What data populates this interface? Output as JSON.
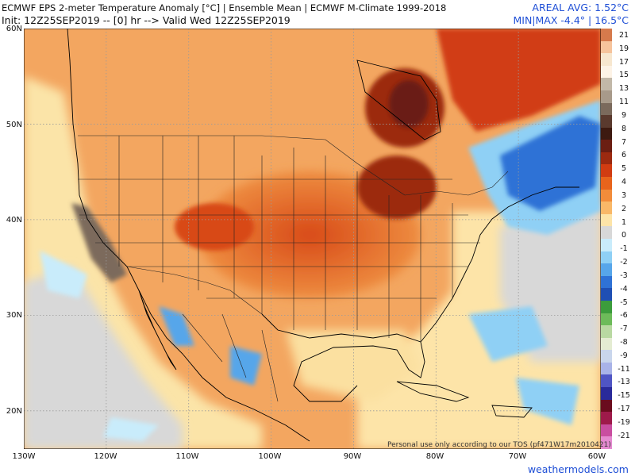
{
  "header": {
    "title": "ECMWF EPS 2-meter Temperature Anomaly [°C] | Ensemble Mean | ECMWF M-Climate 1999-2018",
    "init": "Init: 12Z25SEP2019 -- [0] hr --> Valid Wed 12Z25SEP2019",
    "areal_avg": "AREAL AVG: 1.52°C",
    "minmax": "MIN|MAX -4.4° | 16.5°C"
  },
  "map": {
    "region": "North America",
    "lat_ticks": [
      "60N",
      "50N",
      "40N",
      "30N",
      "20N"
    ],
    "lon_ticks": [
      "130W",
      "120W",
      "110W",
      "100W",
      "90W",
      "80W",
      "70W",
      "60W"
    ],
    "extent": {
      "lon": [
        -130,
        -60
      ],
      "lat": [
        16,
        60
      ]
    },
    "tos_note": "Personal use only according to our TOS (pf471W17m2010421)",
    "site": "weathermodels.com"
  },
  "legend": {
    "labels": [
      "21",
      "19",
      "17",
      "15",
      "13",
      "11",
      "9",
      "8",
      "7",
      "6",
      "5",
      "4",
      "3",
      "2",
      "1",
      "0",
      "-1",
      "-2",
      "-3",
      "-4",
      "-5",
      "-6",
      "-7",
      "-8",
      "-9",
      "-11",
      "-13",
      "-15",
      "-17",
      "-19",
      "-21"
    ],
    "colors": [
      "#d67a4c",
      "#f6c49c",
      "#f7e7cf",
      "#fdf3e6",
      "#c2b8a8",
      "#a89a8a",
      "#7b6a5c",
      "#5a3a2e",
      "#3d1a10",
      "#6b1e12",
      "#9c2a10",
      "#d13c12",
      "#e8641c",
      "#f28c3a",
      "#f9b868",
      "#fde4a8",
      "#d8d8d8",
      "#c9ecfb",
      "#8fd0f5",
      "#57a6ea",
      "#2f72d6",
      "#1f4fb4",
      "#3c9c3c",
      "#6dbb5a",
      "#b9d9a2",
      "#e4ecd2",
      "#c9d6ec",
      "#a9b3e8",
      "#5055c4",
      "#2a2a9a",
      "#6a0c1e",
      "#9e1a4a",
      "#c94ea0",
      "#e58ad0"
    ]
  }
}
